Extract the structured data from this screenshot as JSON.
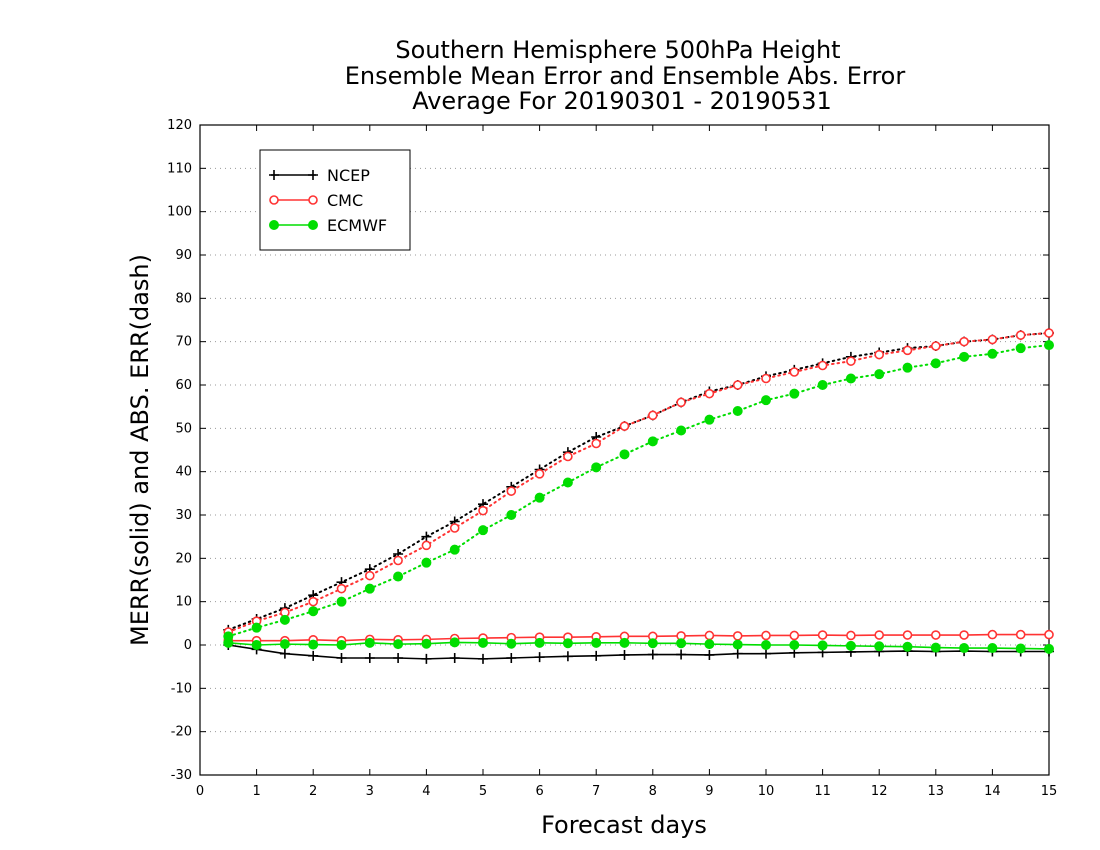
{
  "chart_data": {
    "type": "line",
    "title_lines": [
      "Southern Hemisphere 500hPa Height",
      "Ensemble Mean Error and Ensemble Abs. Error",
      "Average For 20190301 - 20190531"
    ],
    "xlabel": "Forecast days",
    "ylabel": "MERR(solid) and ABS. ERR(dash)",
    "xlim": [
      0,
      15
    ],
    "ylim": [
      -30,
      120
    ],
    "x_ticks": [
      0,
      1,
      2,
      3,
      4,
      5,
      6,
      7,
      8,
      9,
      10,
      11,
      12,
      13,
      14,
      15
    ],
    "y_ticks": [
      -30,
      -20,
      -10,
      0,
      10,
      20,
      30,
      40,
      50,
      60,
      70,
      80,
      90,
      100,
      110,
      120
    ],
    "grid": "horizontal dotted",
    "legend_position": "top-left",
    "x": [
      0.5,
      1,
      1.5,
      2,
      2.5,
      3,
      3.5,
      4,
      4.5,
      5,
      5.5,
      6,
      6.5,
      7,
      7.5,
      8,
      8.5,
      9,
      9.5,
      10,
      10.5,
      11,
      11.5,
      12,
      12.5,
      13,
      13.5,
      14,
      14.5,
      15
    ],
    "series": [
      {
        "name": "NCEP",
        "color": "#000000",
        "marker": "plus",
        "abs_err": [
          3.5,
          6,
          8.5,
          11.5,
          14.5,
          17.5,
          21,
          25,
          28.5,
          32.5,
          36.5,
          40.5,
          44.5,
          48,
          50.5,
          53,
          56,
          58.5,
          60,
          62,
          63.5,
          65,
          66.5,
          67.5,
          68.5,
          69,
          70,
          70.5,
          71.5,
          72
        ],
        "mean_err": [
          0,
          -1,
          -2,
          -2.5,
          -3,
          -3,
          -3,
          -3.2,
          -3,
          -3.2,
          -3,
          -2.8,
          -2.6,
          -2.5,
          -2.3,
          -2.2,
          -2.2,
          -2.3,
          -2,
          -2,
          -1.8,
          -1.7,
          -1.6,
          -1.5,
          -1.4,
          -1.5,
          -1.4,
          -1.5,
          -1.5,
          -1.5
        ]
      },
      {
        "name": "CMC",
        "color": "#ff3333",
        "marker": "open-circle",
        "abs_err": [
          3,
          5.5,
          7.5,
          10,
          13,
          16,
          19.5,
          23,
          27,
          31,
          35.5,
          39.5,
          43.5,
          46.5,
          50.5,
          53,
          56,
          58,
          60,
          61.5,
          63,
          64.5,
          65.5,
          67,
          68,
          69,
          70,
          70.5,
          71.5,
          72
        ],
        "mean_err": [
          1,
          1,
          1,
          1.2,
          1,
          1.3,
          1.2,
          1.3,
          1.5,
          1.6,
          1.7,
          1.8,
          1.8,
          1.9,
          2,
          2,
          2.1,
          2.2,
          2.1,
          2.2,
          2.2,
          2.3,
          2.2,
          2.3,
          2.3,
          2.3,
          2.3,
          2.4,
          2.4,
          2.4
        ]
      },
      {
        "name": "ECMWF",
        "color": "#00dd00",
        "marker": "filled-circle",
        "abs_err": [
          2,
          4,
          5.8,
          7.8,
          10,
          13,
          15.8,
          19,
          22,
          26.5,
          30,
          34,
          37.5,
          41,
          44,
          47,
          49.5,
          52,
          54,
          56.5,
          58,
          60,
          61.5,
          62.5,
          64,
          65,
          66.5,
          67.2,
          68.5,
          69.2
        ],
        "mean_err": [
          0.5,
          0,
          0.2,
          0.1,
          0,
          0.5,
          0.2,
          0.3,
          0.6,
          0.5,
          0.3,
          0.5,
          0.4,
          0.5,
          0.5,
          0.4,
          0.4,
          0.2,
          0.1,
          0,
          0,
          -0.1,
          -0.2,
          -0.3,
          -0.4,
          -0.6,
          -0.7,
          -0.7,
          -0.8,
          -0.9
        ]
      }
    ]
  }
}
